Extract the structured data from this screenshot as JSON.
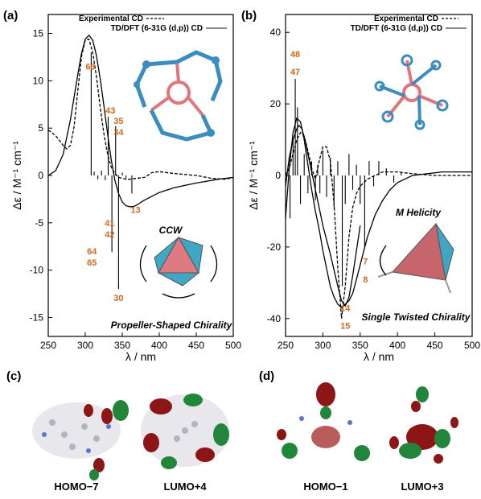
{
  "panels": {
    "a": "(a)",
    "b": "(b)",
    "c": "(c)",
    "d": "(d)"
  },
  "legend": {
    "experimental": "Experimental CD",
    "theory": "TD/DFT (6-31G (d,p)) CD"
  },
  "axes": {
    "xlabel": "λ / nm",
    "ylabel": "Δε / M⁻¹ cm⁻¹"
  },
  "insets": {
    "a_top": "CCW",
    "a_bottom": "Propeller-Shaped Chirality",
    "b_top": "M Helicity",
    "b_bottom": "Single Twisted Chirality"
  },
  "orbitals": {
    "c1": "HOMO−7",
    "c2": "LUMO+4",
    "d1": "HOMO−1",
    "d2": "LUMO+3"
  },
  "colors": {
    "annotation": "#d2691e",
    "stick": "#000000",
    "blue": "#3a8dc0",
    "red": "#e0757b"
  },
  "chart_data": [
    {
      "type": "line",
      "panel": "a",
      "xlim": [
        250,
        500
      ],
      "ylim": [
        -17,
        17
      ],
      "xticks": [
        "250",
        "300",
        "350",
        "400",
        "450",
        "500"
      ],
      "yticks": [
        "15",
        "10",
        "5",
        "0",
        "-5",
        "-10",
        "-15"
      ],
      "series": [
        {
          "name": "Experimental CD",
          "style": "dashed",
          "x": [
            250,
            260,
            270,
            275,
            280,
            285,
            290,
            295,
            300,
            305,
            310,
            315,
            320,
            325,
            330,
            335,
            340,
            345,
            350,
            355,
            360,
            370,
            380,
            390,
            400,
            420,
            450,
            470,
            490,
            500
          ],
          "y": [
            4.8,
            4.2,
            3.2,
            2.8,
            3.2,
            5.2,
            9.0,
            12.6,
            14.3,
            14.4,
            13.0,
            10.5,
            7.3,
            4.5,
            2.3,
            0.9,
            0.2,
            -0.2,
            -0.3,
            -0.4,
            -0.4,
            -0.3,
            -0.2,
            0.3,
            0.4,
            0.2,
            0.0,
            -0.3,
            -0.4,
            -0.2
          ]
        },
        {
          "name": "TD/DFT (6-31G (d,p)) CD",
          "style": "solid",
          "x": [
            250,
            260,
            270,
            280,
            290,
            295,
            300,
            305,
            310,
            315,
            320,
            325,
            330,
            335,
            340,
            345,
            350,
            355,
            360,
            365,
            370,
            380,
            390,
            400,
            420,
            450,
            480,
            500
          ],
          "y": [
            0.0,
            0.5,
            2.2,
            5.9,
            10.7,
            12.9,
            14.4,
            14.8,
            14.3,
            12.7,
            10.3,
            7.5,
            4.5,
            1.7,
            -0.5,
            -1.9,
            -2.8,
            -3.2,
            -3.3,
            -3.3,
            -3.1,
            -2.6,
            -2.2,
            -1.8,
            -1.3,
            -0.8,
            -0.4,
            -0.2
          ]
        }
      ],
      "sticks": {
        "x": [
          308,
          331,
          336,
          341,
          345,
          363,
          312,
          317,
          322,
          327,
          350,
          355
        ],
        "y": [
          13.0,
          6.2,
          -8.1,
          5.2,
          -12.0,
          -1.9,
          0.4,
          -0.4,
          0.5,
          -0.5,
          0.3,
          -0.3
        ]
      },
      "annotations": [
        {
          "text": "66",
          "x": 307,
          "y": 11.5
        },
        {
          "text": "43",
          "x": 334,
          "y": 6.9
        },
        {
          "text": "35",
          "x": 345,
          "y": 5.8
        },
        {
          "text": "34",
          "x": 345,
          "y": 4.6
        },
        {
          "text": "13",
          "x": 368,
          "y": -3.6
        },
        {
          "text": "41",
          "x": 333,
          "y": -5.0
        },
        {
          "text": "42",
          "x": 333,
          "y": -6.2
        },
        {
          "text": "64",
          "x": 309,
          "y": -8.0
        },
        {
          "text": "65",
          "x": 309,
          "y": -9.2
        },
        {
          "text": "30",
          "x": 345,
          "y": -12.9
        }
      ]
    },
    {
      "type": "line",
      "panel": "b",
      "xlim": [
        250,
        500
      ],
      "ylim": [
        -45,
        45
      ],
      "xticks": [
        "250",
        "300",
        "350",
        "400",
        "450",
        "500"
      ],
      "yticks": [
        "40",
        "20",
        "0",
        "-20",
        "-40"
      ],
      "series": [
        {
          "name": "Experimental CD",
          "style": "dashed",
          "x": [
            250,
            255,
            260,
            265,
            270,
            275,
            280,
            285,
            290,
            295,
            300,
            305,
            310,
            315,
            320,
            325,
            330,
            335,
            340,
            345,
            350,
            360,
            370,
            380,
            390,
            400,
            420,
            450,
            500
          ],
          "y": [
            0,
            2,
            6,
            10,
            12,
            11,
            7,
            2,
            -1,
            4,
            8,
            8,
            4,
            -8,
            -26,
            -40,
            -31,
            -17,
            -9,
            -5,
            -3,
            -1,
            0,
            1,
            1,
            1,
            0.5,
            0,
            0
          ]
        },
        {
          "name": "TD/DFT (6-31G (d,p)) CD",
          "style": "solid",
          "x": [
            250,
            255,
            260,
            265,
            270,
            275,
            280,
            285,
            290,
            295,
            300,
            305,
            310,
            315,
            320,
            325,
            330,
            335,
            340,
            345,
            350,
            355,
            360,
            370,
            380,
            390,
            400,
            420,
            440,
            460,
            480,
            500
          ],
          "y": [
            -12,
            2,
            12,
            16,
            15,
            10,
            3,
            -4,
            -10,
            -15,
            -21,
            -26,
            -31,
            -34,
            -36,
            -37,
            -36,
            -35,
            -33,
            -29,
            -25,
            -21,
            -17,
            -11,
            -7,
            -4,
            -2,
            0,
            0.5,
            1,
            1,
            1
          ]
        },
        {
          "name": "",
          "style": "solid-upper",
          "x": [
            250,
            255,
            260,
            265,
            268,
            272,
            276,
            280,
            285,
            290,
            295,
            300,
            310,
            320,
            325,
            330,
            335,
            340,
            345,
            350
          ],
          "y": [
            -3,
            5,
            10,
            13,
            14,
            13,
            10,
            6,
            1,
            -4,
            -9,
            -14,
            -22,
            -31,
            -35,
            -36.5,
            -34,
            -28,
            -21,
            -14
          ]
        }
      ],
      "sticks": {
        "x": [
          256,
          260,
          263,
          266,
          270,
          275,
          280,
          285,
          290,
          293,
          296,
          300,
          305,
          310,
          315,
          320,
          326,
          330,
          335,
          340,
          345,
          350,
          356,
          362,
          368,
          375,
          385,
          395,
          405
        ],
        "y": [
          -12,
          10,
          27,
          19,
          -8,
          6,
          -5,
          4,
          -7,
          3,
          -5,
          7,
          -6,
          5,
          -9,
          4,
          -31,
          -8,
          6,
          -4,
          3,
          -8,
          -20,
          4,
          -3,
          4,
          2,
          -2,
          1
        ]
      },
      "annotations": [
        {
          "text": "48",
          "x": 263,
          "y": 34
        },
        {
          "text": "47",
          "x": 263,
          "y": 29
        },
        {
          "text": "7",
          "x": 357,
          "y": -24
        },
        {
          "text": "8",
          "x": 357,
          "y": -29
        },
        {
          "text": "14",
          "x": 330,
          "y": -37
        },
        {
          "text": "15",
          "x": 330,
          "y": -42
        }
      ]
    }
  ]
}
